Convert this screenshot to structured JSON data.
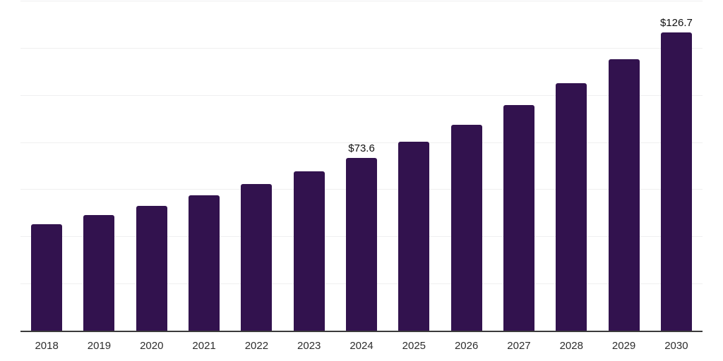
{
  "chart_data": {
    "type": "bar",
    "title": "",
    "xlabel": "",
    "ylabel": "",
    "categories": [
      "2018",
      "2019",
      "2020",
      "2021",
      "2022",
      "2023",
      "2024",
      "2025",
      "2026",
      "2027",
      "2028",
      "2029",
      "2030"
    ],
    "values": [
      45.5,
      49.3,
      53.2,
      57.7,
      62.5,
      67.9,
      73.6,
      80.5,
      87.6,
      96.0,
      105.3,
      115.5,
      126.7
    ],
    "data_labels": [
      "",
      "",
      "",
      "",
      "",
      "",
      "$73.6",
      "",
      "",
      "",
      "",
      "",
      "$126.7"
    ],
    "ylim": [
      0,
      140
    ],
    "grid_step": 20,
    "grid": "on",
    "legend": "none",
    "y_axis_ticks": "hidden",
    "colors": {
      "bar": "#32124E",
      "gridline": "#efeff0",
      "axis_line": "#3b3b3b",
      "data_label": "#101010",
      "tick_label": "#2d2d2d",
      "background": "#ffffff"
    }
  }
}
